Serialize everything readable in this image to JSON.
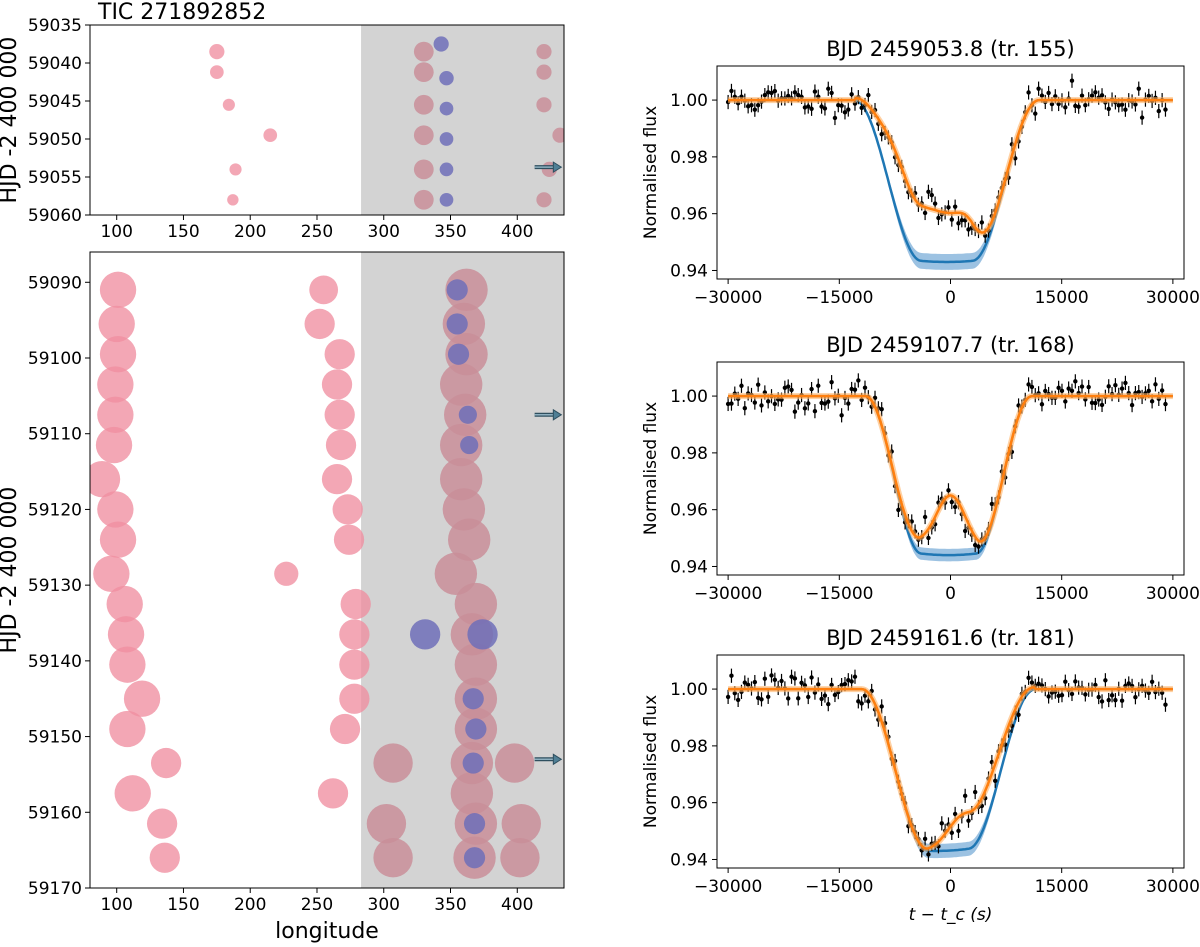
{
  "figure_title": "TIC 271892852",
  "chart_data": [
    {
      "type": "scatter",
      "id": "spotmap-top",
      "ylabel": "HJD -2 400 000",
      "xlabel": "",
      "xlim": [
        80,
        435
      ],
      "ylim": [
        59035,
        59060
      ],
      "y_inverted": true,
      "xticks": [
        100,
        150,
        200,
        250,
        300,
        350,
        400
      ],
      "yticks": [
        59035,
        59040,
        59045,
        59050,
        59055,
        59060
      ],
      "shaded_xrange": [
        283,
        435
      ],
      "shade_color": "#d3d3d3",
      "spot_color": "#f08ea0",
      "spot_color_shaded": "#c98e99",
      "occult_color": "#6f6fb8",
      "spots": [
        {
          "x": 175,
          "y": 59038.5,
          "r": 1.0
        },
        {
          "x": 175,
          "y": 59041.2,
          "r": 0.9
        },
        {
          "x": 184,
          "y": 59045.5,
          "r": 0.8
        },
        {
          "x": 215,
          "y": 59049.5,
          "r": 0.9
        },
        {
          "x": 189,
          "y": 59054.0,
          "r": 0.8
        },
        {
          "x": 187,
          "y": 59058.0,
          "r": 0.75
        },
        {
          "x": 330,
          "y": 59038.5,
          "r": 1.3
        },
        {
          "x": 330,
          "y": 59041.2,
          "r": 1.3
        },
        {
          "x": 330,
          "y": 59045.5,
          "r": 1.3
        },
        {
          "x": 330,
          "y": 59049.5,
          "r": 1.3
        },
        {
          "x": 330,
          "y": 59054.0,
          "r": 1.3
        },
        {
          "x": 330,
          "y": 59058.0,
          "r": 1.3
        },
        {
          "x": 420,
          "y": 59038.5,
          "r": 1.0
        },
        {
          "x": 420,
          "y": 59041.2,
          "r": 1.0
        },
        {
          "x": 420,
          "y": 59045.5,
          "r": 1.0
        },
        {
          "x": 432,
          "y": 59049.5,
          "r": 1.0
        },
        {
          "x": 424,
          "y": 59054.0,
          "r": 1.0
        },
        {
          "x": 420,
          "y": 59058.0,
          "r": 1.0
        }
      ],
      "occulted": [
        {
          "x": 343,
          "y": 59037.5,
          "r": 1.0
        },
        {
          "x": 347,
          "y": 59042.0,
          "r": 0.95
        },
        {
          "x": 347,
          "y": 59046.0,
          "r": 0.9
        },
        {
          "x": 347,
          "y": 59050.0,
          "r": 0.9
        },
        {
          "x": 347,
          "y": 59054.0,
          "r": 0.9
        },
        {
          "x": 347,
          "y": 59058.0,
          "r": 0.9
        }
      ],
      "arrows": [
        {
          "x0": 413,
          "x1": 433,
          "y": 59053.7
        }
      ]
    },
    {
      "type": "scatter",
      "id": "spotmap-bottom",
      "ylabel": "HJD -2 400 000",
      "xlabel": "longitude",
      "xlim": [
        80,
        435
      ],
      "ylim": [
        59086,
        59170
      ],
      "y_inverted": true,
      "xticks": [
        100,
        150,
        200,
        250,
        300,
        350,
        400
      ],
      "yticks": [
        59090,
        59100,
        59110,
        59120,
        59130,
        59140,
        59150,
        59160,
        59170
      ],
      "shaded_xrange": [
        283,
        435
      ],
      "shade_color": "#d3d3d3",
      "spot_color": "#f08ea0",
      "spot_color_shaded": "#c98e99",
      "occult_color": "#6f6fb8",
      "spots": [
        {
          "x": 101,
          "y": 59091.0,
          "r": 2.4
        },
        {
          "x": 100,
          "y": 59095.5,
          "r": 2.4
        },
        {
          "x": 101,
          "y": 59099.5,
          "r": 2.4
        },
        {
          "x": 99,
          "y": 59103.5,
          "r": 2.4
        },
        {
          "x": 99,
          "y": 59107.5,
          "r": 2.4
        },
        {
          "x": 98,
          "y": 59111.5,
          "r": 2.4
        },
        {
          "x": 89,
          "y": 59116.0,
          "r": 2.4
        },
        {
          "x": 99,
          "y": 59120.0,
          "r": 2.4
        },
        {
          "x": 101,
          "y": 59124.0,
          "r": 2.4
        },
        {
          "x": 96,
          "y": 59128.5,
          "r": 2.4
        },
        {
          "x": 106,
          "y": 59132.5,
          "r": 2.4
        },
        {
          "x": 107,
          "y": 59136.5,
          "r": 2.4
        },
        {
          "x": 108,
          "y": 59140.5,
          "r": 2.4
        },
        {
          "x": 119,
          "y": 59145.0,
          "r": 2.4
        },
        {
          "x": 108,
          "y": 59149.0,
          "r": 2.4
        },
        {
          "x": 137,
          "y": 59153.5,
          "r": 2.0
        },
        {
          "x": 112,
          "y": 59157.5,
          "r": 2.4
        },
        {
          "x": 134,
          "y": 59161.5,
          "r": 2.0
        },
        {
          "x": 136,
          "y": 59166.0,
          "r": 2.0
        },
        {
          "x": 255,
          "y": 59091.0,
          "r": 1.9
        },
        {
          "x": 252,
          "y": 59095.5,
          "r": 2.0
        },
        {
          "x": 267,
          "y": 59099.5,
          "r": 2.0
        },
        {
          "x": 265,
          "y": 59103.5,
          "r": 2.0
        },
        {
          "x": 267,
          "y": 59107.5,
          "r": 2.0
        },
        {
          "x": 268,
          "y": 59111.5,
          "r": 2.0
        },
        {
          "x": 265,
          "y": 59116.0,
          "r": 2.0
        },
        {
          "x": 273,
          "y": 59120.0,
          "r": 2.0
        },
        {
          "x": 274,
          "y": 59124.0,
          "r": 2.0
        },
        {
          "x": 227,
          "y": 59128.5,
          "r": 1.6
        },
        {
          "x": 279,
          "y": 59132.5,
          "r": 2.0
        },
        {
          "x": 278,
          "y": 59136.5,
          "r": 2.0
        },
        {
          "x": 278,
          "y": 59140.5,
          "r": 2.0
        },
        {
          "x": 278,
          "y": 59145.0,
          "r": 2.0
        },
        {
          "x": 271,
          "y": 59149.0,
          "r": 2.0
        },
        {
          "x": 262,
          "y": 59157.5,
          "r": 2.0
        },
        {
          "x": 362,
          "y": 59091.0,
          "r": 2.8
        },
        {
          "x": 360,
          "y": 59095.5,
          "r": 2.8
        },
        {
          "x": 362,
          "y": 59099.5,
          "r": 2.8
        },
        {
          "x": 358,
          "y": 59103.5,
          "r": 2.8
        },
        {
          "x": 361,
          "y": 59107.5,
          "r": 2.8
        },
        {
          "x": 358,
          "y": 59111.5,
          "r": 2.8
        },
        {
          "x": 358,
          "y": 59116.0,
          "r": 2.8
        },
        {
          "x": 360,
          "y": 59120.0,
          "r": 2.8
        },
        {
          "x": 364,
          "y": 59124.0,
          "r": 2.8
        },
        {
          "x": 354,
          "y": 59128.5,
          "r": 2.8
        },
        {
          "x": 369,
          "y": 59132.5,
          "r": 2.8
        },
        {
          "x": 366,
          "y": 59136.5,
          "r": 2.8
        },
        {
          "x": 369,
          "y": 59140.5,
          "r": 2.8
        },
        {
          "x": 369,
          "y": 59145.0,
          "r": 2.8
        },
        {
          "x": 369,
          "y": 59149.0,
          "r": 2.8
        },
        {
          "x": 307,
          "y": 59153.5,
          "r": 2.6
        },
        {
          "x": 366,
          "y": 59153.5,
          "r": 2.8
        },
        {
          "x": 398,
          "y": 59153.5,
          "r": 2.6
        },
        {
          "x": 366,
          "y": 59157.5,
          "r": 2.8
        },
        {
          "x": 302,
          "y": 59161.5,
          "r": 2.6
        },
        {
          "x": 369,
          "y": 59161.5,
          "r": 2.8
        },
        {
          "x": 403,
          "y": 59161.5,
          "r": 2.6
        },
        {
          "x": 307,
          "y": 59166.0,
          "r": 2.6
        },
        {
          "x": 368,
          "y": 59166.0,
          "r": 2.8
        },
        {
          "x": 402,
          "y": 59166.0,
          "r": 2.6
        }
      ],
      "occulted": [
        {
          "x": 355,
          "y": 59091.0,
          "r": 1.4
        },
        {
          "x": 355,
          "y": 59095.5,
          "r": 1.4
        },
        {
          "x": 356,
          "y": 59099.5,
          "r": 1.4
        },
        {
          "x": 363,
          "y": 59107.5,
          "r": 1.2
        },
        {
          "x": 364,
          "y": 59111.5,
          "r": 1.2
        },
        {
          "x": 331,
          "y": 59136.5,
          "r": 2.0
        },
        {
          "x": 374,
          "y": 59136.5,
          "r": 2.0
        },
        {
          "x": 367,
          "y": 59145.0,
          "r": 1.4
        },
        {
          "x": 369,
          "y": 59149.0,
          "r": 1.4
        },
        {
          "x": 367,
          "y": 59153.5,
          "r": 1.4
        },
        {
          "x": 368,
          "y": 59161.5,
          "r": 1.4
        },
        {
          "x": 368,
          "y": 59166.0,
          "r": 1.4
        }
      ],
      "arrows": [
        {
          "x0": 413,
          "x1": 433,
          "y": 59107.5
        },
        {
          "x0": 413,
          "x1": 433,
          "y": 59153.0
        }
      ]
    },
    {
      "type": "line",
      "id": "lightcurve-1",
      "title": "BJD 2459053.8 (tr. 155)",
      "ylabel": "Normalised flux",
      "xlabel": "",
      "xlim": [
        -31500,
        31500
      ],
      "ylim": [
        0.937,
        1.012
      ],
      "xticks": [
        -30000,
        -15000,
        0,
        15000,
        30000
      ],
      "xtick_labels": [
        "−30000",
        "−15000",
        "0",
        "15000",
        "30000"
      ],
      "yticks": [
        0.94,
        0.96,
        0.98,
        1.0
      ],
      "ytick_labels": [
        "0.94",
        "0.96",
        "0.98",
        "1.00"
      ],
      "transit": {
        "t1": -13000,
        "t4": 12000,
        "tc_shift": 0,
        "depth": 0.057,
        "ingress": 9000
      },
      "model_band": 0.0028,
      "bumps": [
        {
          "t": -7200,
          "amp": 0.015,
          "w": 2200
        },
        {
          "t": -2000,
          "amp": 0.017,
          "w": 3400
        },
        {
          "t": 2300,
          "amp": 0.008,
          "w": 1600
        }
      ],
      "noise_amp": 0.0025,
      "seed": 11,
      "errbar": 0.0025,
      "n_points": 132,
      "model_color": "#1f77b4",
      "fit_color": "#ff7f0e",
      "band_color": "#4a8fcb"
    },
    {
      "type": "line",
      "id": "lightcurve-2",
      "title": "BJD 2459107.7 (tr. 168)",
      "ylabel": "Normalised flux",
      "xlabel": "",
      "xlim": [
        -31500,
        31500
      ],
      "ylim": [
        0.937,
        1.012
      ],
      "xticks": [
        -30000,
        -15000,
        0,
        15000,
        30000
      ],
      "xtick_labels": [
        "−30000",
        "−15000",
        "0",
        "15000",
        "30000"
      ],
      "yticks": [
        0.94,
        0.96,
        0.98,
        1.0
      ],
      "ytick_labels": [
        "0.94",
        "0.96",
        "0.98",
        "1.00"
      ],
      "transit": {
        "t1": -11500,
        "t4": 11000,
        "tc_shift": 0,
        "depth": 0.056,
        "ingress": 7500
      },
      "model_band": 0.0022,
      "bumps": [
        {
          "t": 0,
          "amp": 0.021,
          "w": 2100
        },
        {
          "t": -5000,
          "amp": 0.003,
          "w": 1500
        }
      ],
      "noise_amp": 0.0025,
      "seed": 23,
      "errbar": 0.0025,
      "n_points": 132,
      "model_color": "#1f77b4",
      "fit_color": "#ff7f0e",
      "band_color": "#4a8fcb"
    },
    {
      "type": "line",
      "id": "lightcurve-3",
      "title": "BJD 2459161.6 (tr. 181)",
      "ylabel": "Normalised flux",
      "xlabel": "t − t_c (s)",
      "xlim": [
        -31500,
        31500
      ],
      "ylim": [
        0.937,
        1.012
      ],
      "xticks": [
        -30000,
        -15000,
        0,
        15000,
        30000
      ],
      "xtick_labels": [
        "−30000",
        "−15000",
        "0",
        "15000",
        "30000"
      ],
      "yticks": [
        0.94,
        0.96,
        0.98,
        1.0
      ],
      "ytick_labels": [
        "0.94",
        "0.96",
        "0.98",
        "1.00"
      ],
      "transit": {
        "t1": -12000,
        "t4": 11500,
        "tc_shift": -1800,
        "depth": 0.057,
        "ingress": 9000
      },
      "model_band": 0.0025,
      "bumps": [
        {
          "t": 4500,
          "amp": 0.011,
          "w": 2900
        },
        {
          "t": 1000,
          "amp": 0.006,
          "w": 1800
        }
      ],
      "noise_amp": 0.0025,
      "seed": 37,
      "errbar": 0.0025,
      "n_points": 132,
      "model_color": "#1f77b4",
      "fit_color": "#ff7f0e",
      "band_color": "#4a8fcb"
    }
  ]
}
